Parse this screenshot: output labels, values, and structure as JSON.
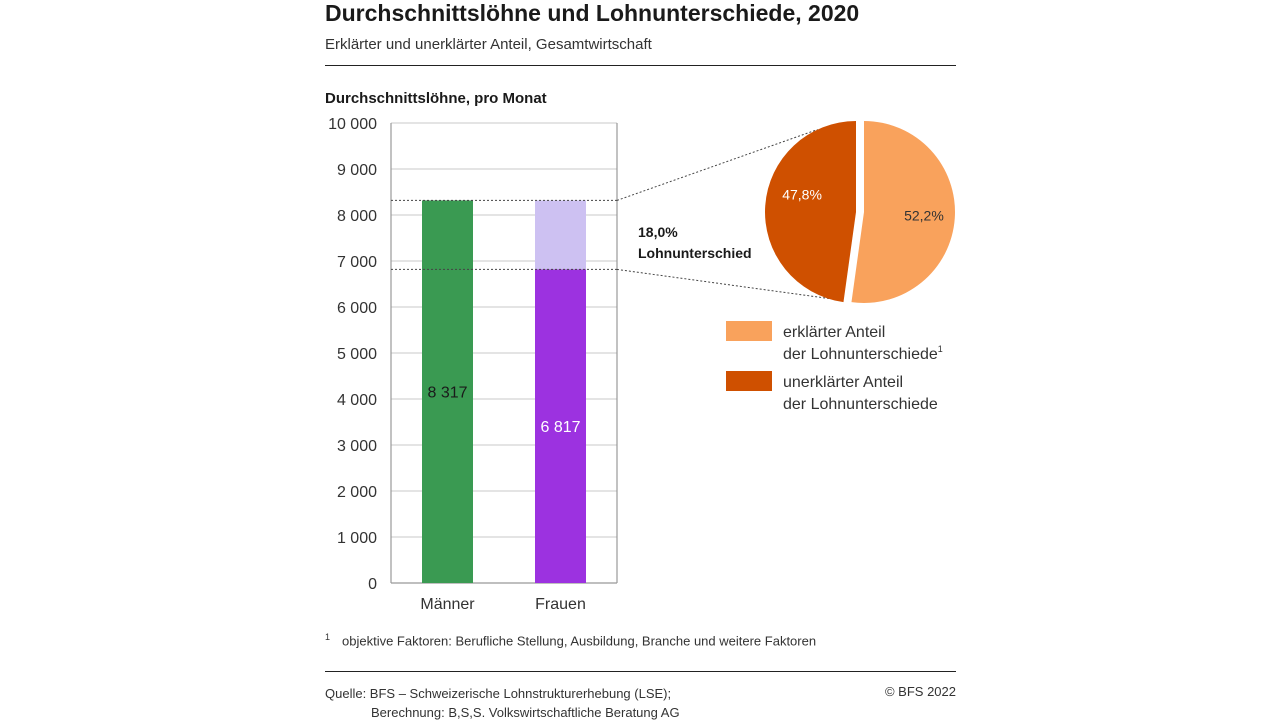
{
  "header": {
    "title": "Durchschnittslöhne und Lohnunterschiede, 2020",
    "subtitle": "Erklärter und unerklärter Anteil, Gesamtwirtschaft"
  },
  "chart_data": [
    {
      "type": "bar",
      "title": "Durchschnittslöhne, pro Monat",
      "categories": [
        "Männer",
        "Frauen"
      ],
      "values": [
        8317,
        6817
      ],
      "value_labels": [
        "8 317",
        "6 817"
      ],
      "gap_segment": {
        "category": "Frauen",
        "from": 6817,
        "to": 8317,
        "color": "#cdc1f2"
      },
      "colors": [
        "#3a9a52",
        "#9c32e0"
      ],
      "ylim": [
        0,
        10000
      ],
      "yticks": [
        0,
        1000,
        2000,
        3000,
        4000,
        5000,
        6000,
        7000,
        8000,
        9000,
        10000
      ],
      "ytick_labels": [
        "0",
        "1 000",
        "2 000",
        "3 000",
        "4 000",
        "5 000",
        "6 000",
        "7 000",
        "8 000",
        "9 000",
        "10 000"
      ],
      "grid": true
    },
    {
      "type": "pie",
      "title": "18,0% Lohnunterschied",
      "title_lines": [
        "18,0%",
        "Lohnunterschied"
      ],
      "slices": [
        {
          "label_lines": [
            "erklärter Anteil",
            "der Lohnunterschiede"
          ],
          "label_sup": "1",
          "value": 52.2,
          "value_label": "52,2%",
          "color": "#f9a25c"
        },
        {
          "label_lines": [
            "unerklärter Anteil",
            "der Lohnunterschiede"
          ],
          "value": 47.8,
          "value_label": "47,8%",
          "color": "#cf5000"
        }
      ],
      "legend": "right, below pie"
    }
  ],
  "footnote": {
    "marker": "1",
    "text": "objektive Faktoren: Berufliche Stellung, Ausbildung, Branche und weitere Faktoren"
  },
  "source": {
    "line1": "Quelle: BFS – Schweizerische Lohnstrukturerhebung (LSE);",
    "line2": "Berechnung:  B,S,S. Volkswirtschaftliche Beratung AG"
  },
  "copyright": "© BFS 2022"
}
